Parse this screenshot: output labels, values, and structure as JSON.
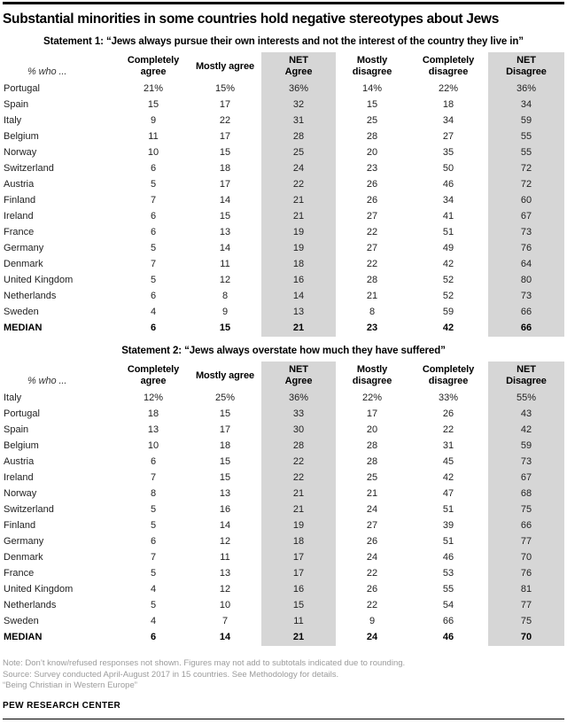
{
  "title": "Substantial minorities in some countries hold negative stereotypes about Jews",
  "colors": {
    "band": "#d6d6d6",
    "rule": "#000000",
    "note": "#9b9b9b"
  },
  "chart_data": [
    {
      "type": "table",
      "title": "Statement 1: “Jews always pursue their own interests and not the interest of the country they live in”",
      "who_label": "% who ...",
      "columns": [
        "Completely\nagree",
        "Mostly agree",
        "NET\nAgree",
        "Mostly\ndisagree",
        "Completely\ndisagree",
        "NET\nDisagree"
      ],
      "shaded_columns": [
        "NET Agree",
        "NET Disagree"
      ],
      "rows": [
        {
          "country": "Portugal",
          "values": [
            "21%",
            "15%",
            "36%",
            "14%",
            "22%",
            "36%"
          ]
        },
        {
          "country": "Spain",
          "values": [
            "15",
            "17",
            "32",
            "15",
            "18",
            "34"
          ]
        },
        {
          "country": "Italy",
          "values": [
            "9",
            "22",
            "31",
            "25",
            "34",
            "59"
          ]
        },
        {
          "country": "Belgium",
          "values": [
            "11",
            "17",
            "28",
            "28",
            "27",
            "55"
          ]
        },
        {
          "country": "Norway",
          "values": [
            "10",
            "15",
            "25",
            "20",
            "35",
            "55"
          ]
        },
        {
          "country": "Switzerland",
          "values": [
            "6",
            "18",
            "24",
            "23",
            "50",
            "72"
          ]
        },
        {
          "country": "Austria",
          "values": [
            "5",
            "17",
            "22",
            "26",
            "46",
            "72"
          ]
        },
        {
          "country": "Finland",
          "values": [
            "7",
            "14",
            "21",
            "26",
            "34",
            "60"
          ]
        },
        {
          "country": "Ireland",
          "values": [
            "6",
            "15",
            "21",
            "27",
            "41",
            "67"
          ]
        },
        {
          "country": "France",
          "values": [
            "6",
            "13",
            "19",
            "22",
            "51",
            "73"
          ]
        },
        {
          "country": "Germany",
          "values": [
            "5",
            "14",
            "19",
            "27",
            "49",
            "76"
          ]
        },
        {
          "country": "Denmark",
          "values": [
            "7",
            "11",
            "18",
            "22",
            "42",
            "64"
          ]
        },
        {
          "country": "United Kingdom",
          "values": [
            "5",
            "12",
            "16",
            "28",
            "52",
            "80"
          ]
        },
        {
          "country": "Netherlands",
          "values": [
            "6",
            "8",
            "14",
            "21",
            "52",
            "73"
          ]
        },
        {
          "country": "Sweden",
          "values": [
            "4",
            "9",
            "13",
            "8",
            "59",
            "66"
          ]
        },
        {
          "country": "MEDIAN",
          "values": [
            "6",
            "15",
            "21",
            "23",
            "42",
            "66"
          ]
        }
      ]
    },
    {
      "type": "table",
      "title": "Statement 2: “Jews always overstate how much they have suffered”",
      "who_label": "% who ...",
      "columns": [
        "Completely\nagree",
        "Mostly agree",
        "NET\nAgree",
        "Mostly\ndisagree",
        "Completely\ndisagree",
        "NET\nDisagree"
      ],
      "shaded_columns": [
        "NET Agree",
        "NET Disagree"
      ],
      "rows": [
        {
          "country": "Italy",
          "values": [
            "12%",
            "25%",
            "36%",
            "22%",
            "33%",
            "55%"
          ]
        },
        {
          "country": "Portugal",
          "values": [
            "18",
            "15",
            "33",
            "17",
            "26",
            "43"
          ]
        },
        {
          "country": "Spain",
          "values": [
            "13",
            "17",
            "30",
            "20",
            "22",
            "42"
          ]
        },
        {
          "country": "Belgium",
          "values": [
            "10",
            "18",
            "28",
            "28",
            "31",
            "59"
          ]
        },
        {
          "country": "Austria",
          "values": [
            "6",
            "15",
            "22",
            "28",
            "45",
            "73"
          ]
        },
        {
          "country": "Ireland",
          "values": [
            "7",
            "15",
            "22",
            "25",
            "42",
            "67"
          ]
        },
        {
          "country": "Norway",
          "values": [
            "8",
            "13",
            "21",
            "21",
            "47",
            "68"
          ]
        },
        {
          "country": "Switzerland",
          "values": [
            "5",
            "16",
            "21",
            "24",
            "51",
            "75"
          ]
        },
        {
          "country": "Finland",
          "values": [
            "5",
            "14",
            "19",
            "27",
            "39",
            "66"
          ]
        },
        {
          "country": "Germany",
          "values": [
            "6",
            "12",
            "18",
            "26",
            "51",
            "77"
          ]
        },
        {
          "country": "Denmark",
          "values": [
            "7",
            "11",
            "17",
            "24",
            "46",
            "70"
          ]
        },
        {
          "country": "France",
          "values": [
            "5",
            "13",
            "17",
            "22",
            "53",
            "76"
          ]
        },
        {
          "country": "United Kingdom",
          "values": [
            "4",
            "12",
            "16",
            "26",
            "55",
            "81"
          ]
        },
        {
          "country": "Netherlands",
          "values": [
            "5",
            "10",
            "15",
            "22",
            "54",
            "77"
          ]
        },
        {
          "country": "Sweden",
          "values": [
            "4",
            "7",
            "11",
            "9",
            "66",
            "75"
          ]
        },
        {
          "country": "MEDIAN",
          "values": [
            "6",
            "14",
            "21",
            "24",
            "46",
            "70"
          ]
        }
      ]
    }
  ],
  "footer": {
    "note": "Note: Don’t know/refused responses not shown. Figures may not add to subtotals indicated due to rounding.",
    "source": "Source: Survey conducted April-August 2017 in 15 countries. See Methodology for details.",
    "credit": "“Being Christian in Western Europe”",
    "brand": "PEW RESEARCH CENTER"
  }
}
